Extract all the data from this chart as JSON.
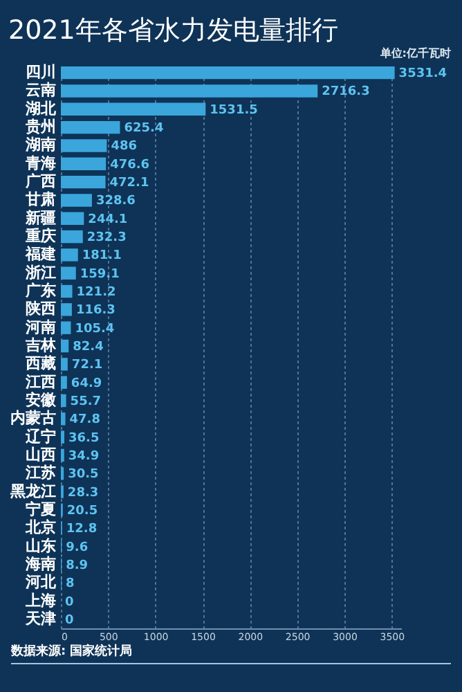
{
  "chart_data": {
    "type": "bar",
    "orientation": "horizontal",
    "title": "2021年各省水力发电量排行",
    "annotations": [
      "单位:亿千瓦时",
      "数据来源: 国家统计局"
    ],
    "categories": [
      "四川",
      "云南",
      "湖北",
      "贵州",
      "湖南",
      "青海",
      "广西",
      "甘肃",
      "新疆",
      "重庆",
      "福建",
      "浙江",
      "广东",
      "陕西",
      "河南",
      "吉林",
      "西藏",
      "江西",
      "安徽",
      "内蒙古",
      "辽宁",
      "山西",
      "江苏",
      "黑龙江",
      "宁夏",
      "北京",
      "山东",
      "海南",
      "河北",
      "上海",
      "天津"
    ],
    "values": [
      3531.4,
      2716.3,
      1531.5,
      625.4,
      486,
      476.6,
      472.1,
      328.6,
      244.1,
      232.3,
      181.1,
      159.1,
      121.2,
      116.3,
      105.4,
      82.4,
      72.1,
      64.9,
      55.7,
      47.8,
      36.5,
      34.9,
      30.5,
      28.3,
      20.5,
      12.8,
      9.6,
      8.9,
      8,
      0,
      0
    ],
    "color": "#3aa6dc",
    "data_labels": true,
    "grid": "x",
    "xlim": [
      0,
      3600
    ],
    "xticks": [
      0,
      500,
      1000,
      1500,
      2000,
      2500,
      3000,
      3500
    ]
  }
}
